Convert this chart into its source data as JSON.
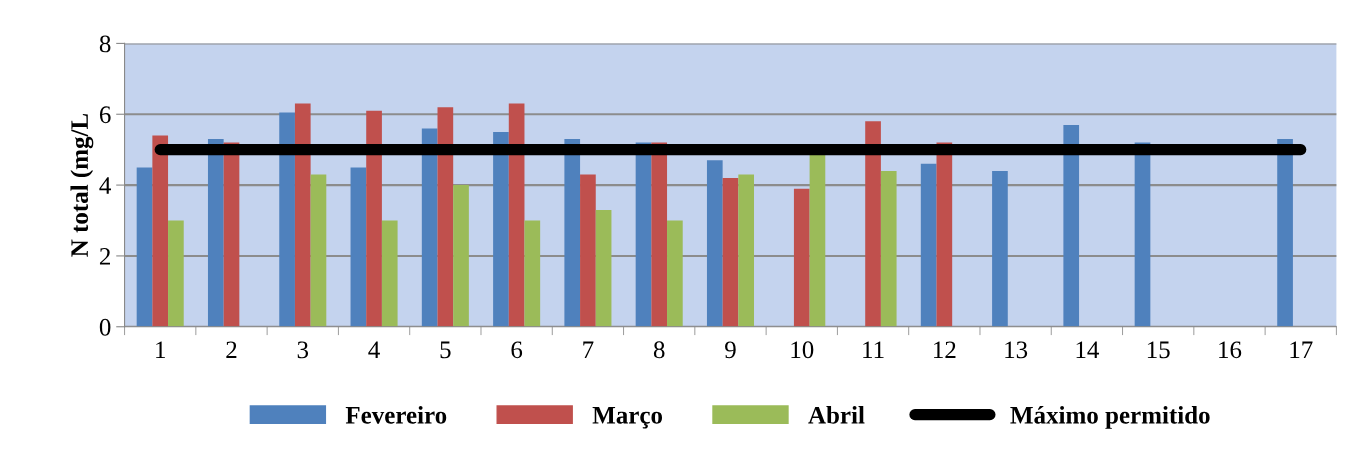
{
  "chart_data": {
    "type": "bar",
    "ylabel": "N total (mg/L",
    "categories": [
      "1",
      "2",
      "3",
      "4",
      "5",
      "6",
      "7",
      "8",
      "9",
      "10",
      "11",
      "12",
      "13",
      "14",
      "15",
      "16",
      "17"
    ],
    "series": [
      {
        "name": "Fevereiro",
        "color": "#4f81bd",
        "values": [
          4.5,
          5.3,
          6.05,
          4.5,
          5.6,
          5.5,
          5.3,
          5.2,
          4.7,
          null,
          null,
          4.6,
          4.4,
          5.7,
          5.2,
          null,
          5.3
        ]
      },
      {
        "name": "Março",
        "color": "#c0504d",
        "values": [
          5.4,
          5.2,
          6.3,
          6.1,
          6.2,
          6.3,
          4.3,
          5.2,
          4.2,
          3.9,
          5.8,
          5.2,
          null,
          null,
          null,
          null,
          null
        ]
      },
      {
        "name": "Abril",
        "color": "#9bbb59",
        "values": [
          3.0,
          null,
          4.3,
          3.0,
          4.0,
          3.0,
          3.3,
          3.0,
          4.3,
          4.9,
          4.4,
          null,
          null,
          null,
          null,
          null,
          null
        ]
      },
      {
        "name": "Máximo permitido",
        "type": "line",
        "color": "#000000",
        "values": [
          5,
          5,
          5,
          5,
          5,
          5,
          5,
          5,
          5,
          5,
          5,
          5,
          5,
          5,
          5,
          5,
          5
        ]
      }
    ],
    "ylim": [
      0,
      8
    ],
    "yticks": [
      0,
      2,
      4,
      6,
      8
    ],
    "grid": "y",
    "legend": "bottom"
  }
}
